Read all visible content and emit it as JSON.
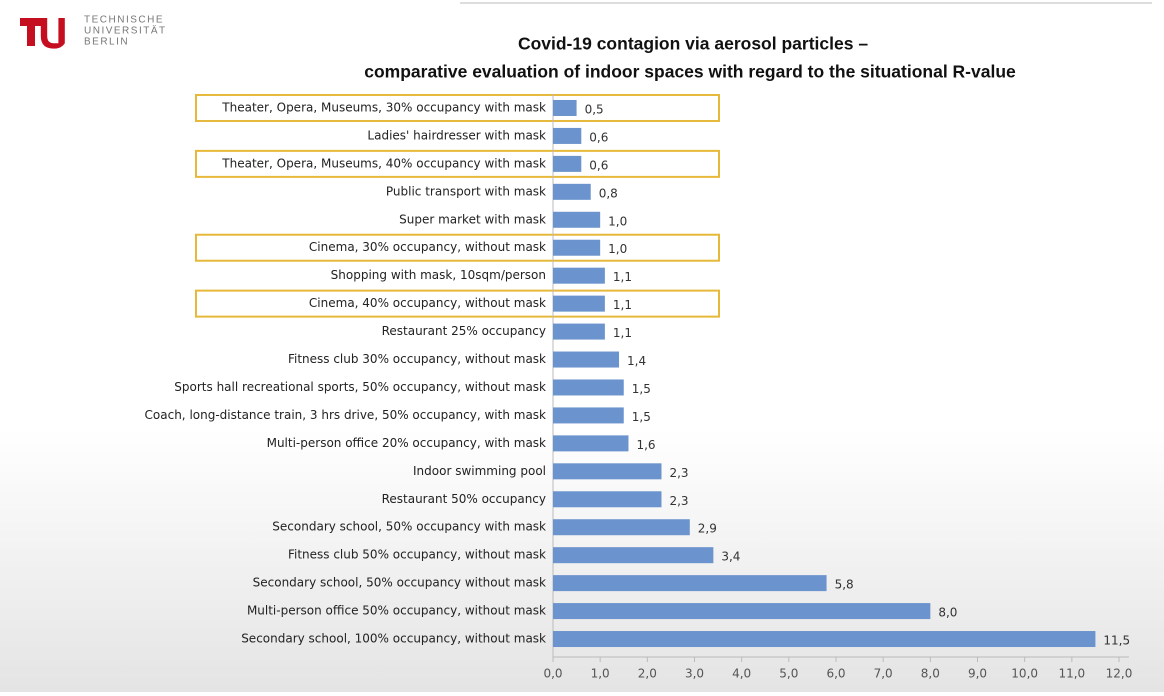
{
  "header": {
    "logo": [
      "TECHNISCHE",
      "UNIVERSITÄT",
      "BERLIN"
    ]
  },
  "chart_data": {
    "type": "barh",
    "title": [
      "Covid-19 contagion via aerosol particles –",
      "comparative evaluation of indoor spaces with regard to the situational R-value"
    ],
    "categories": [
      "Theater, Opera, Museums, 30% occupancy with mask",
      "Ladies' hairdresser with mask",
      "Theater, Opera, Museums, 40% occupancy with mask",
      "Public transport with mask",
      "Super market with mask",
      "Cinema, 30% occupancy, without mask",
      "Shopping with mask, 10sqm/person",
      "Cinema, 40% occupancy, without mask",
      "Restaurant 25% occupancy",
      "Fitness club 30% occupancy, without mask",
      "Sports hall recreational sports, 50% occupancy, without mask",
      "Coach, long-distance train, 3 hrs drive, 50% occupancy, with mask",
      "Multi-person office 20% occupancy, with mask",
      "Indoor swimming pool",
      "Restaurant 50% occupancy",
      "Secondary school, 50% occupancy with mask",
      "Fitness club 50% occupancy, without mask",
      "Secondary school, 50% occupancy without mask",
      "Multi-person office 50% occupancy, without mask",
      "Secondary school, 100% occupancy, without mask"
    ],
    "values": [
      0.5,
      0.6,
      0.6,
      0.8,
      1.0,
      1.0,
      1.1,
      1.1,
      1.1,
      1.4,
      1.5,
      1.5,
      1.6,
      2.3,
      2.3,
      2.9,
      3.4,
      5.8,
      8.0,
      11.5
    ],
    "value_labels": [
      "0,5",
      "0,6",
      "0,6",
      "0,8",
      "1,0",
      "1,0",
      "1,1",
      "1,1",
      "1,1",
      "1,4",
      "1,5",
      "1,5",
      "1,6",
      "2,3",
      "2,3",
      "2,9",
      "3,4",
      "5,8",
      "8,0",
      "11,5"
    ],
    "color": "#6b93cd",
    "highlighted": [
      0,
      2,
      5,
      7
    ],
    "highlight_color": "#e6b93a",
    "xlim": [
      0,
      12
    ],
    "xticks": [
      {
        "value": 0,
        "label": "0,0"
      },
      {
        "value": 1,
        "label": "1,0"
      },
      {
        "value": 2,
        "label": "2,0"
      },
      {
        "value": 3,
        "label": "3,0"
      },
      {
        "value": 4,
        "label": "4,0"
      },
      {
        "value": 5,
        "label": "5,0"
      },
      {
        "value": 6,
        "label": "6,0"
      },
      {
        "value": 7,
        "label": "7,0"
      },
      {
        "value": 8,
        "label": "8,0"
      },
      {
        "value": 9,
        "label": "9,0"
      },
      {
        "value": 10,
        "label": "10,0"
      },
      {
        "value": 11,
        "label": "11,0"
      },
      {
        "value": 12,
        "label": "12,0"
      }
    ],
    "grid": false
  }
}
